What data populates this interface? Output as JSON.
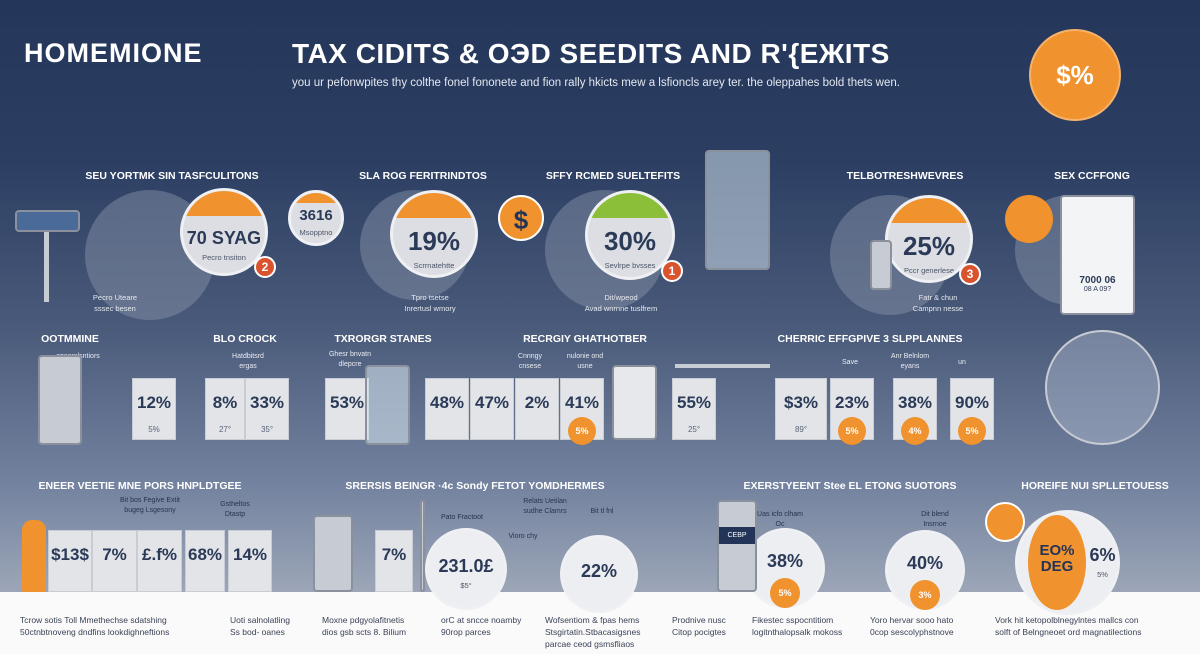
{
  "header": {
    "brand": "HOMEMIONE",
    "title": "TAX CIDITS & OЭD SEEDITS AND R'{EЖITS",
    "subtitle": "you ur pefonwpites thy colthe fonel fononete and fion rally hkicts mew a lsfioncls arey ter. the oleppahes bold thets wen.",
    "badge": "$%"
  },
  "colors": {
    "accent_orange": "#f0922e",
    "accent_green": "#8bbf3a",
    "badge_red": "#d9532f",
    "background_top": "#24365a"
  },
  "row1": {
    "headings": [
      "SEU YORTMK SIN TASFCULITONS",
      "SLA ROG FERITRINDTOS",
      "SFFY RCMED SUELTEFITS",
      "TELBOTRESHWEVRES",
      "SEX CCFFONG"
    ],
    "circles": [
      {
        "value": "70 SYAG",
        "label": "Pecro tnsiton",
        "badge": "2",
        "cap": "orange"
      },
      {
        "value": "19%",
        "label": "Scrrnatehtte",
        "cap": "orange"
      },
      {
        "value": "30%",
        "label": "Sevlrpe bvsses",
        "badge": "1",
        "cap": "green"
      },
      {
        "value": "25%",
        "label": "Pccr generlese",
        "badge": "3",
        "cap": "orange"
      }
    ],
    "small_circle": {
      "value": "3616",
      "label": "Msopptno"
    },
    "dollar_icon": "$",
    "captions": [
      [
        "Pecro Uteare",
        "sssec besen"
      ],
      [
        "Tpro tsetse",
        "Inrertusl wmory"
      ],
      [
        "Dit/wpeod",
        "Avad wnrnne tuslfrem"
      ],
      [
        "Fatr & chun",
        "Campnn nesse"
      ]
    ],
    "device": {
      "value": "7000 06",
      "label": "08 A 09?"
    }
  },
  "row2": {
    "headings": [
      "OOTMMINE",
      "BLO CROCK",
      "TXRORGR STANES",
      "RECRGIY GHATHOTBER",
      "CHERRIC EFFGPIVE 3 SLPPLANNES"
    ],
    "labels": [
      "opsorolsntiors",
      "Hatdbitsrd ergas",
      "Ghesr bnvatn dlepcre",
      "Cnnngy cnsese",
      "nulonie ond usne",
      "Save",
      "Anr Belnlom eyans",
      "un"
    ],
    "cards": [
      {
        "value": "12%",
        "sub": "5%"
      },
      {
        "value": "8%",
        "sub": "27°"
      },
      {
        "value": "33%",
        "sub": "35°"
      },
      {
        "value": "53%"
      },
      {
        "value": "48%"
      },
      {
        "value": "47%"
      },
      {
        "value": "2%"
      },
      {
        "value": "41%",
        "orange": "5%"
      },
      {
        "value": "55%",
        "sub": "25°"
      },
      {
        "value": "$3%",
        "sub": "89°"
      },
      {
        "value": "23%",
        "orange": "5%"
      },
      {
        "value": "38%",
        "orange": "4%"
      },
      {
        "value": "90%",
        "orange": "5%"
      }
    ]
  },
  "row3": {
    "headings": [
      "ENEER VEETIE MNE PORS HNPLDTGEE",
      "SRERSIS BEINGR ·4c Sondy FETOT YOMDHERMES",
      "EXERSTYEENT Stee EL ETONG SUOTORS",
      "HOREIFE NUI SPLLETOUESS"
    ],
    "labels": [
      "Bit bos Fegive Extit bugeg Lsgesony",
      "Gstheltos Dtastp",
      "Relats Uetilan sudhe Clamrs",
      "Pato Fractoot",
      "Vioro chy",
      "Uas icfo clham Oc",
      "Dit blend Insrnoe",
      "Bit tl fnl"
    ],
    "cards": [
      {
        "value": "$13$"
      },
      {
        "value": "7%"
      },
      {
        "value": "£.f%"
      },
      {
        "value": "68%"
      },
      {
        "value": "14%"
      },
      {
        "value": "7%"
      }
    ],
    "circles": [
      {
        "value": "231.0£",
        "sub": "$5°"
      },
      {
        "value": "22%"
      },
      {
        "value": "38%",
        "orange": "5%"
      },
      {
        "value": "40%",
        "orange": "3%"
      },
      {
        "value": "6%",
        "sub": "5%"
      }
    ],
    "pie_label": "EO% DEG",
    "screen_label": "CEBP"
  },
  "footer": {
    "captions": [
      [
        "Tcrow sotis Toll Mmethechse sdatshing",
        "50ctnbtnoveng dndfins lookdighneftions"
      ],
      [
        "Uoti salnolatling",
        "Ss bod- oanes"
      ],
      [
        "Moxne pdgyolafitnetis",
        "dios gsb scts 8. Bilium"
      ],
      [
        "orC at sncce noamby",
        "90rop parces"
      ],
      [
        "Wofsentiom & fpas hems",
        "Stsgirtatin.Stbacasigsnes",
        "parcae ceod gsmsfliaos"
      ],
      [
        "Prodnive nusc",
        "Citop pocigtes"
      ],
      [
        "Fikestec sspocntitiom",
        "logitnthalopsalk mokoss"
      ],
      [
        "Yoro hervar sooo hato",
        "0cop sescolyphstnove"
      ],
      [
        "Vork hit ketopolblnegylntes mallcs con",
        "solft of Belngneoet ord magnatilections"
      ]
    ]
  }
}
